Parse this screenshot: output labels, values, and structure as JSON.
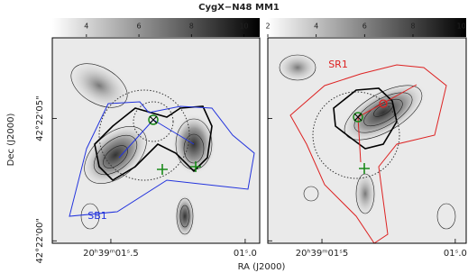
{
  "title": "CygX−N48 MM1",
  "xlabel": "RA (J2000)",
  "ylabel": "Dec (J2000)",
  "chart_data": [
    {
      "type": "image",
      "annotation": "SB1",
      "annotation_color": "#2233dd",
      "colorbar_lim": [
        2.7,
        10.6
      ],
      "colorbar_ticks": [
        4,
        6,
        8,
        10
      ],
      "xlim": [
        1.718,
        0.946
      ],
      "xticks": [
        {
          "value": 1.5,
          "label": "20ʰ39ᵐ01ˢ.5"
        },
        {
          "value": 1.0,
          "label": "01ˢ.0"
        }
      ],
      "ylim": [
        -0.1,
        8.3
      ],
      "yticks": [
        {
          "value": 5,
          "label": "42°22'05\""
        },
        {
          "value": 0,
          "label": "42°22'00\""
        }
      ]
    },
    {
      "type": "image",
      "annotation": "SR1",
      "annotation_color": "#dd2222",
      "colorbar_lim": [
        2,
        10.2
      ],
      "colorbar_ticks": [
        2,
        4,
        6,
        8,
        10
      ],
      "xlim": [
        1.703,
        0.959
      ],
      "xticks": [
        {
          "value": 1.5,
          "label": "20ʰ39ᵐ01ˢ5"
        },
        {
          "value": 1.0,
          "label": "01ˢ.0"
        }
      ],
      "ylim": [
        -0.1,
        8.3
      ],
      "yticks": [
        5,
        0
      ]
    }
  ]
}
